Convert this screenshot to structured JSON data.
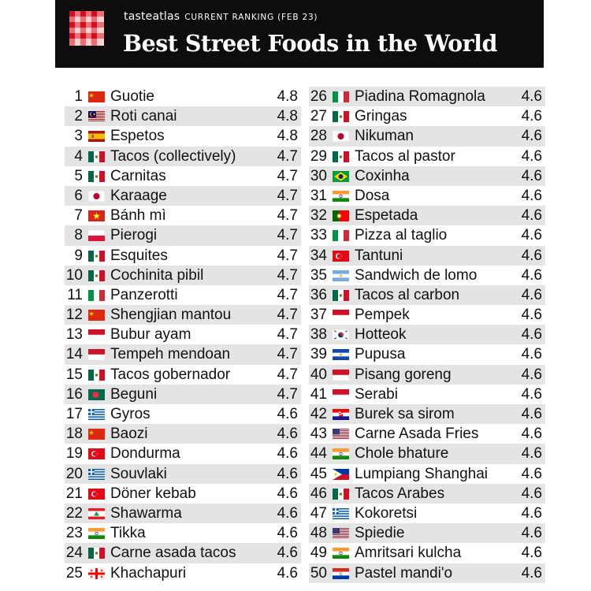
{
  "header": {
    "brand": "tasteatlas",
    "subtitle": "CURRENT RANKING (FEB 23)",
    "title": "Best Street Foods in the World"
  },
  "ranking": [
    {
      "rank": "1",
      "name": "Guotie",
      "score": "4.8",
      "flag": "china-flag-icon"
    },
    {
      "rank": "2",
      "name": "Roti canai",
      "score": "4.8",
      "flag": "malaysia-flag-icon"
    },
    {
      "rank": "3",
      "name": "Espetos",
      "score": "4.8",
      "flag": "spain-flag-icon"
    },
    {
      "rank": "4",
      "name": "Tacos (collectively)",
      "score": "4.7",
      "flag": "mexico-flag-icon"
    },
    {
      "rank": "5",
      "name": "Carnitas",
      "score": "4.7",
      "flag": "mexico-flag-icon"
    },
    {
      "rank": "6",
      "name": "Karaage",
      "score": "4.7",
      "flag": "japan-flag-icon"
    },
    {
      "rank": "7",
      "name": "Bánh mì",
      "score": "4.7",
      "flag": "vietnam-flag-icon"
    },
    {
      "rank": "8",
      "name": "Pierogi",
      "score": "4.7",
      "flag": "poland-flag-icon"
    },
    {
      "rank": "9",
      "name": "Esquites",
      "score": "4.7",
      "flag": "mexico-flag-icon"
    },
    {
      "rank": "10",
      "name": "Cochinita pibil",
      "score": "4.7",
      "flag": "mexico-flag-icon"
    },
    {
      "rank": "11",
      "name": "Panzerotti",
      "score": "4.7",
      "flag": "italy-flag-icon"
    },
    {
      "rank": "12",
      "name": "Shengjian mantou",
      "score": "4.7",
      "flag": "china-flag-icon"
    },
    {
      "rank": "13",
      "name": "Bubur ayam",
      "score": "4.7",
      "flag": "indonesia-flag-icon"
    },
    {
      "rank": "14",
      "name": "Tempeh mendoan",
      "score": "4.7",
      "flag": "indonesia-flag-icon"
    },
    {
      "rank": "15",
      "name": "Tacos gobernador",
      "score": "4.7",
      "flag": "mexico-flag-icon"
    },
    {
      "rank": "16",
      "name": "Beguni",
      "score": "4.7",
      "flag": "bangladesh-flag-icon"
    },
    {
      "rank": "17",
      "name": "Gyros",
      "score": "4.6",
      "flag": "greece-flag-icon"
    },
    {
      "rank": "18",
      "name": "Baozi",
      "score": "4.6",
      "flag": "china-flag-icon"
    },
    {
      "rank": "19",
      "name": "Dondurma",
      "score": "4.6",
      "flag": "turkey-flag-icon"
    },
    {
      "rank": "20",
      "name": "Souvlaki",
      "score": "4.6",
      "flag": "greece-flag-icon"
    },
    {
      "rank": "21",
      "name": "Döner kebab",
      "score": "4.6",
      "flag": "turkey-flag-icon"
    },
    {
      "rank": "22",
      "name": "Shawarma",
      "score": "4.6",
      "flag": "lebanon-flag-icon"
    },
    {
      "rank": "23",
      "name": "Tikka",
      "score": "4.6",
      "flag": "india-flag-icon"
    },
    {
      "rank": "24",
      "name": "Carne asada tacos",
      "score": "4.6",
      "flag": "mexico-flag-icon"
    },
    {
      "rank": "25",
      "name": "Khachapuri",
      "score": "4.6",
      "flag": "georgia-flag-icon"
    },
    {
      "rank": "26",
      "name": "Piadina Romagnola",
      "score": "4.6",
      "flag": "italy-flag-icon"
    },
    {
      "rank": "27",
      "name": "Gringas",
      "score": "4.6",
      "flag": "mexico-flag-icon"
    },
    {
      "rank": "28",
      "name": "Nikuman",
      "score": "4.6",
      "flag": "japan-flag-icon"
    },
    {
      "rank": "29",
      "name": "Tacos al pastor",
      "score": "4.6",
      "flag": "mexico-flag-icon"
    },
    {
      "rank": "30",
      "name": "Coxinha",
      "score": "4.6",
      "flag": "brazil-flag-icon"
    },
    {
      "rank": "31",
      "name": "Dosa",
      "score": "4.6",
      "flag": "india-flag-icon"
    },
    {
      "rank": "32",
      "name": "Espetada",
      "score": "4.6",
      "flag": "portugal-flag-icon"
    },
    {
      "rank": "33",
      "name": "Pizza al taglio",
      "score": "4.6",
      "flag": "italy-flag-icon"
    },
    {
      "rank": "34",
      "name": "Tantuni",
      "score": "4.6",
      "flag": "turkey-flag-icon"
    },
    {
      "rank": "35",
      "name": "Sandwich de lomo",
      "score": "4.6",
      "flag": "argentina-flag-icon"
    },
    {
      "rank": "36",
      "name": "Tacos al carbon",
      "score": "4.6",
      "flag": "mexico-flag-icon"
    },
    {
      "rank": "37",
      "name": "Pempek",
      "score": "4.6",
      "flag": "indonesia-flag-icon"
    },
    {
      "rank": "38",
      "name": "Hotteok",
      "score": "4.6",
      "flag": "south-korea-flag-icon"
    },
    {
      "rank": "39",
      "name": "Pupusa",
      "score": "4.6",
      "flag": "el-salvador-flag-icon"
    },
    {
      "rank": "40",
      "name": "Pisang goreng",
      "score": "4.6",
      "flag": "indonesia-flag-icon"
    },
    {
      "rank": "41",
      "name": "Serabi",
      "score": "4.6",
      "flag": "indonesia-flag-icon"
    },
    {
      "rank": "42",
      "name": "Burek sa sirom",
      "score": "4.6",
      "flag": "croatia-flag-icon"
    },
    {
      "rank": "43",
      "name": "Carne Asada Fries",
      "score": "4.6",
      "flag": "usa-flag-icon"
    },
    {
      "rank": "44",
      "name": "Chole bhature",
      "score": "4.6",
      "flag": "india-flag-icon"
    },
    {
      "rank": "45",
      "name": "Lumpiang Shanghai",
      "score": "4.6",
      "flag": "philippines-flag-icon"
    },
    {
      "rank": "46",
      "name": "Tacos Arabes",
      "score": "4.6",
      "flag": "mexico-flag-icon"
    },
    {
      "rank": "47",
      "name": "Kokoretsi",
      "score": "4.6",
      "flag": "greece-flag-icon"
    },
    {
      "rank": "48",
      "name": "Spiedie",
      "score": "4.6",
      "flag": "usa-flag-icon"
    },
    {
      "rank": "49",
      "name": "Amritsari kulcha",
      "score": "4.6",
      "flag": "india-flag-icon"
    },
    {
      "rank": "50",
      "name": "Pastel mandi'o",
      "score": "4.6",
      "flag": "paraguay-flag-icon"
    }
  ]
}
